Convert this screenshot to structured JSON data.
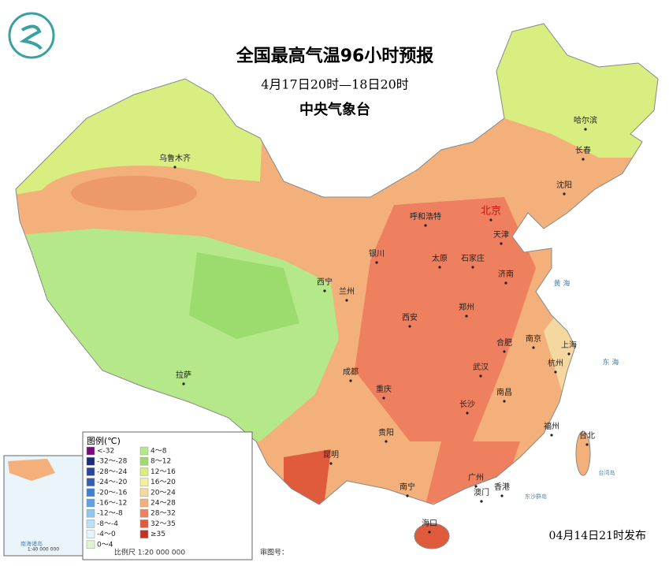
{
  "header": {
    "title": "全国最高气温96小时预报",
    "subtitle": "4月17日20时—18日20时",
    "agency": "中央气象台"
  },
  "cities": [
    {
      "name": "乌鲁木齐"
    },
    {
      "name": "哈尔滨"
    },
    {
      "name": "长春"
    },
    {
      "name": "沈阳"
    },
    {
      "name": "呼和浩特"
    },
    {
      "name": "北京"
    },
    {
      "name": "天津"
    },
    {
      "name": "银川"
    },
    {
      "name": "太原"
    },
    {
      "name": "石家庄"
    },
    {
      "name": "济南"
    },
    {
      "name": "西宁"
    },
    {
      "name": "兰州"
    },
    {
      "name": "西安"
    },
    {
      "name": "郑州"
    },
    {
      "name": "合肥"
    },
    {
      "name": "南京"
    },
    {
      "name": "上海"
    },
    {
      "name": "杭州"
    },
    {
      "name": "成都"
    },
    {
      "name": "武汉"
    },
    {
      "name": "拉萨"
    },
    {
      "name": "重庆"
    },
    {
      "name": "南昌"
    },
    {
      "name": "长沙"
    },
    {
      "name": "福州"
    },
    {
      "name": "台北"
    },
    {
      "name": "贵阳"
    },
    {
      "name": "昆明"
    },
    {
      "name": "广州"
    },
    {
      "name": "南宁"
    },
    {
      "name": "香港"
    },
    {
      "name": "澳门"
    },
    {
      "name": "海口"
    }
  ],
  "seas": [
    {
      "name": "黄 海"
    },
    {
      "name": "东 海"
    },
    {
      "name": "台湾岛"
    },
    {
      "name": "东沙群岛"
    },
    {
      "name": "南海诸岛"
    }
  ],
  "legend": {
    "title": "图例(℃)",
    "items": [
      {
        "label": "<-32",
        "color": "#7b0a7b"
      },
      {
        "label": "-32～-28",
        "color": "#1a2d7a"
      },
      {
        "label": "-28～-24",
        "color": "#28479a"
      },
      {
        "label": "-24～-20",
        "color": "#3460b0"
      },
      {
        "label": "-20～-16",
        "color": "#3f7fd0"
      },
      {
        "label": "-16～-12",
        "color": "#5fa0e0"
      },
      {
        "label": "-12～-8",
        "color": "#8ec8ee"
      },
      {
        "label": "-8～-4",
        "color": "#b8e2f5"
      },
      {
        "label": "-4～0",
        "color": "#e4f4fb"
      },
      {
        "label": "0～4",
        "color": "#dcf5cc"
      },
      {
        "label": "4～8",
        "color": "#b4e888"
      },
      {
        "label": "8～12",
        "color": "#9cdc6e"
      },
      {
        "label": "12～16",
        "color": "#d8ee80"
      },
      {
        "label": "16～20",
        "color": "#f5ee9e"
      },
      {
        "label": "20～24",
        "color": "#f5d8a0"
      },
      {
        "label": "24～28",
        "color": "#f4b07a"
      },
      {
        "label": "28～32",
        "color": "#ee8060"
      },
      {
        "label": "32～35",
        "color": "#e05a3c"
      },
      {
        "label": "≥35",
        "color": "#c83020"
      }
    ]
  },
  "inset": {
    "scale": "1:40 000 000"
  },
  "footer": {
    "release": "04月14日21时发布",
    "scale": "比例尺 1:20 000 000",
    "review": "审图号："
  }
}
